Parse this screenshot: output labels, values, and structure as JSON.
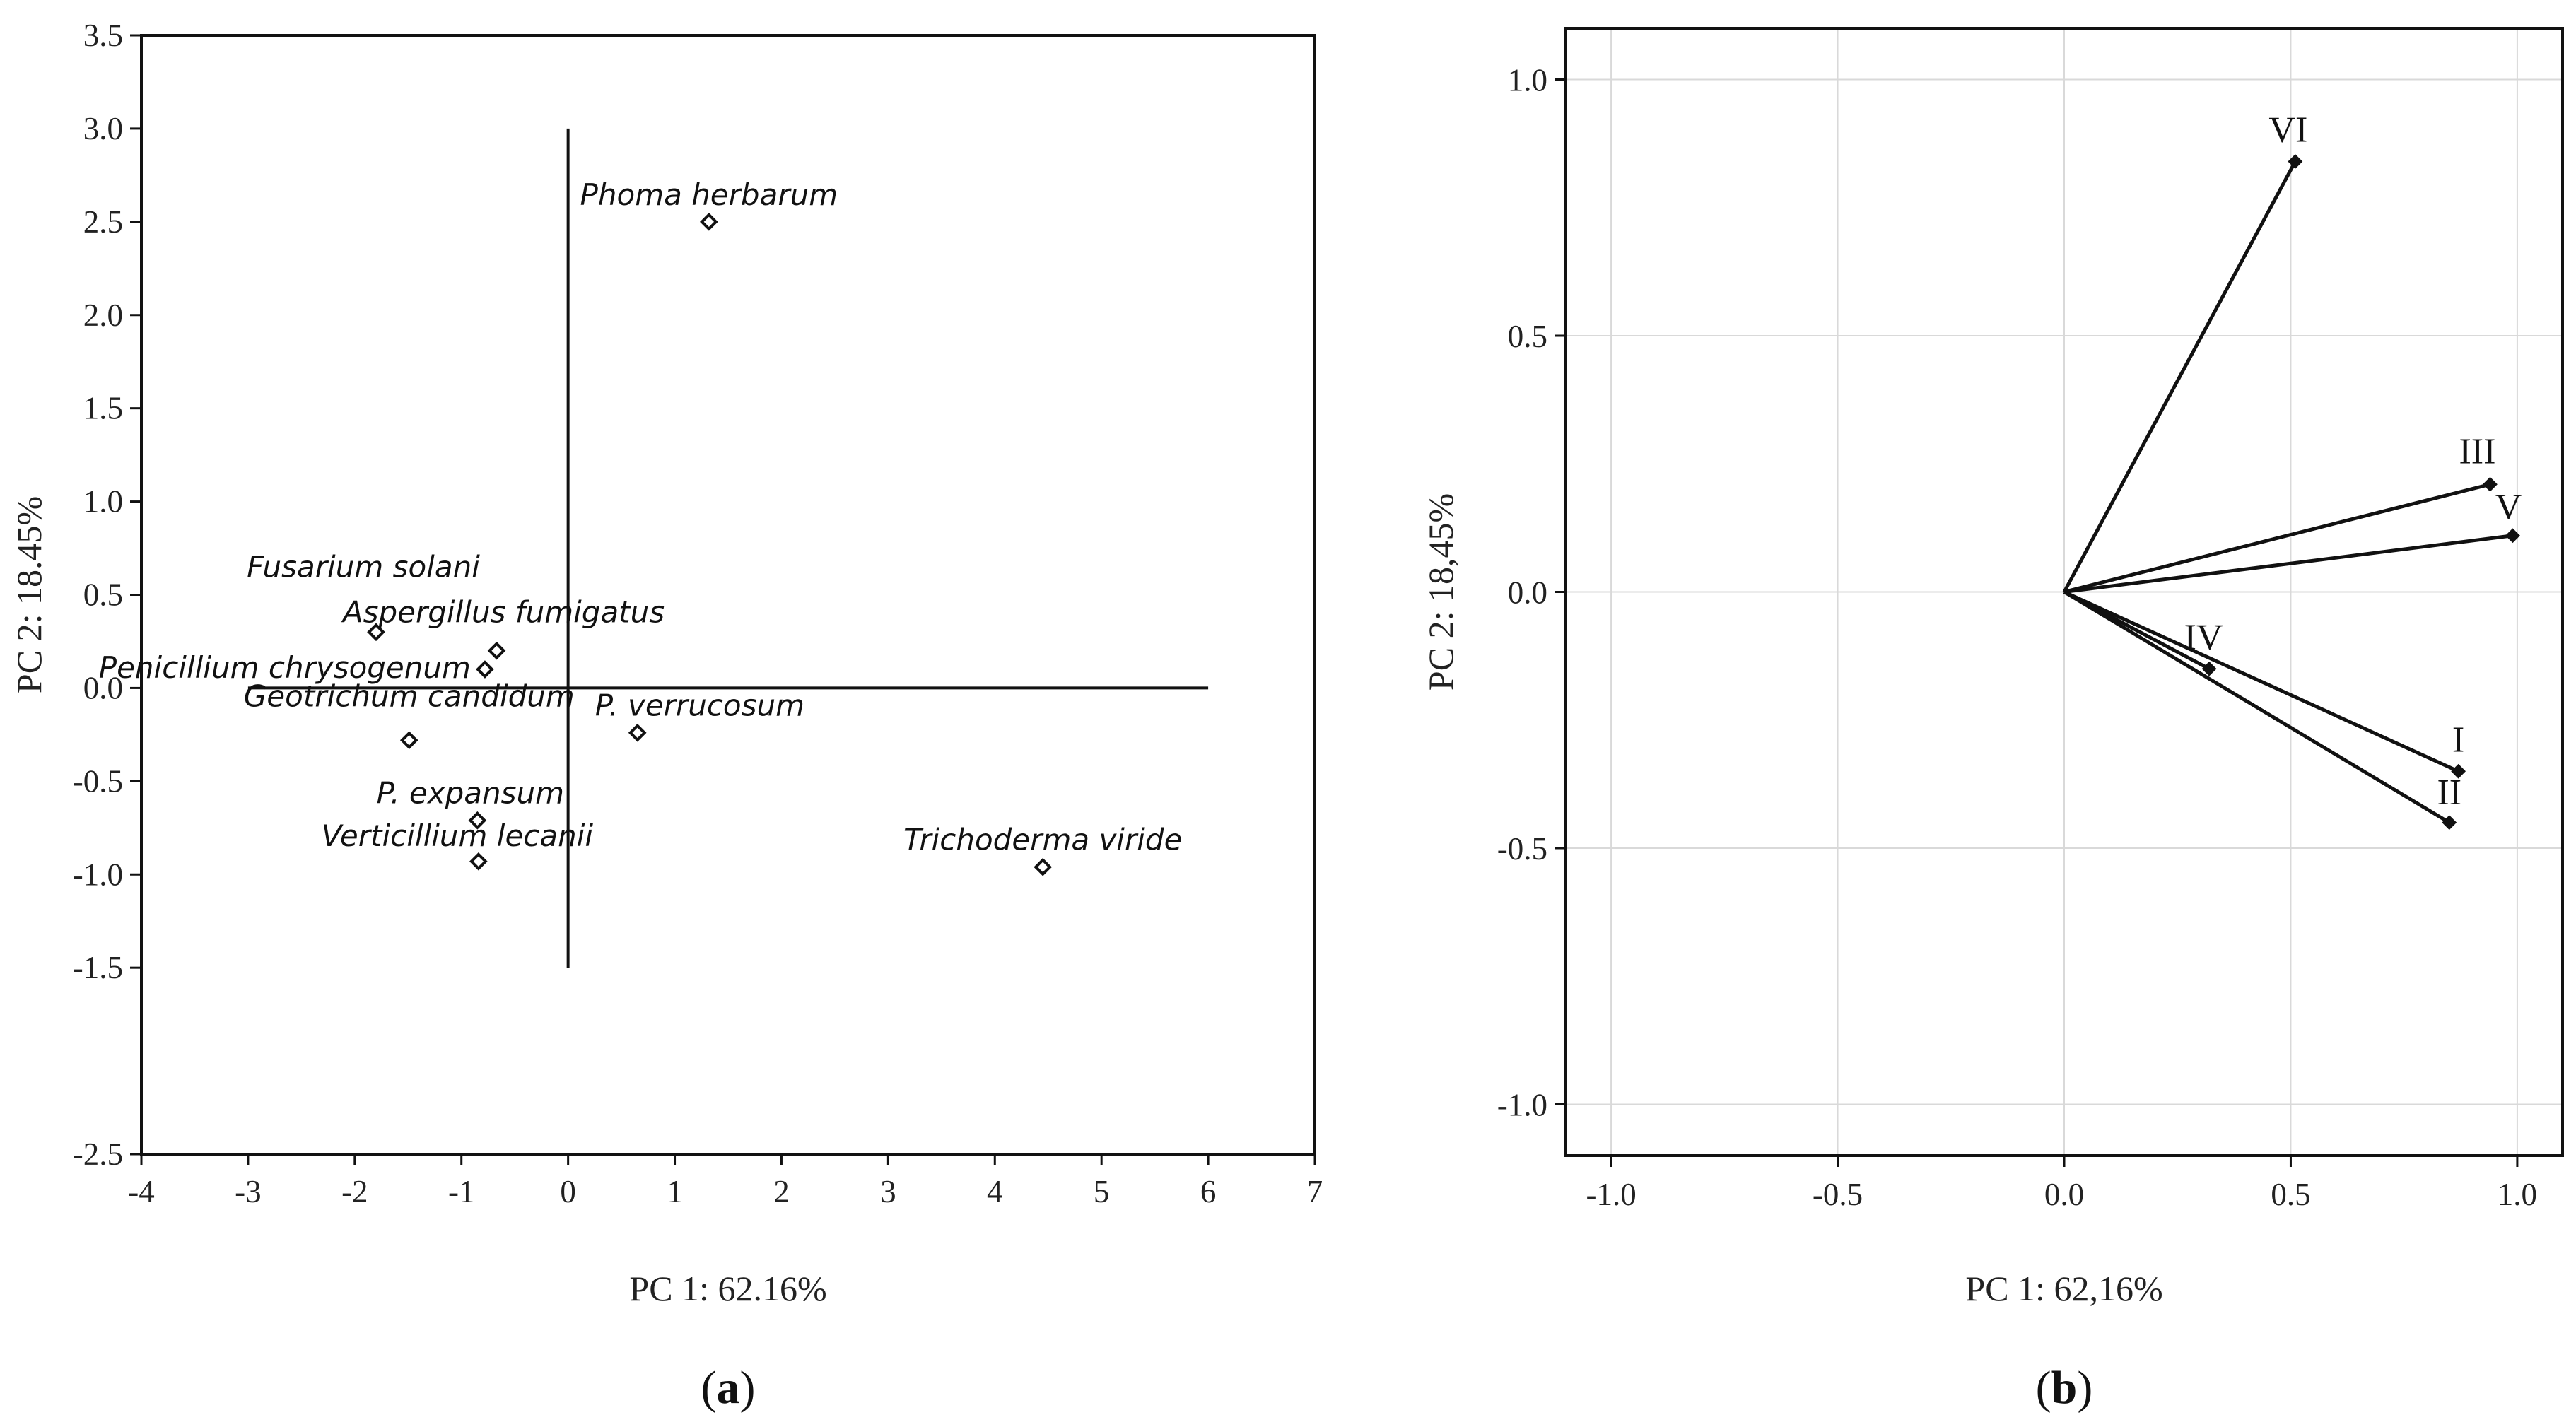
{
  "chart_data": [
    {
      "type": "scatter",
      "panel_label": "a",
      "xlabel": "PC 1: 62.16%",
      "ylabel": "PC 2: 18.45%",
      "xlim": [
        -4,
        7
      ],
      "ylim": [
        -2.5,
        3.5
      ],
      "xticks": [
        "-4",
        "-3",
        "-2",
        "-1",
        "0",
        "1",
        "2",
        "3",
        "4",
        "5",
        "6",
        "7"
      ],
      "yticks": [
        "3.5",
        "3.0",
        "2.5",
        "2.0",
        "1.5",
        "1.0",
        "0.5",
        "0.0",
        "-0.5",
        "-1.0",
        "-1.5",
        "-2.5"
      ],
      "ytick_values": [
        3.5,
        3.0,
        2.5,
        2.0,
        1.5,
        1.0,
        0.5,
        0.0,
        -0.5,
        -1.0,
        -1.5,
        -2.5
      ],
      "reference_lines": {
        "horizontal": {
          "y": 0,
          "x_from": -3,
          "x_to": 6
        },
        "vertical": {
          "x": 0,
          "y_from": -1.5,
          "y_to": 3.0
        }
      },
      "grid": false,
      "points": [
        {
          "label": "Phoma herbarum",
          "x": 1.32,
          "y": 2.5
        },
        {
          "label": "Fusarium solani",
          "x": -1.8,
          "y": 0.3
        },
        {
          "label": "Aspergillus fumigatus",
          "x": -0.67,
          "y": 0.2
        },
        {
          "label": "Penicillium chrysogenum",
          "x": -0.78,
          "y": 0.1
        },
        {
          "label": "Geotrichum candidum",
          "x": -1.49,
          "y": -0.28
        },
        {
          "label": "P. verrucosum",
          "x": 0.65,
          "y": -0.24
        },
        {
          "label": "P. expansum",
          "x": -0.85,
          "y": -0.71
        },
        {
          "label": "Verticillium lecanii",
          "x": -0.84,
          "y": -0.93
        },
        {
          "label": "Trichoderma viride",
          "x": 4.45,
          "y": -0.96
        }
      ]
    },
    {
      "type": "vector",
      "panel_label": "b",
      "xlabel": "PC 1: 62,16%",
      "ylabel": "PC 2: 18,45%",
      "xlim": [
        -1.1,
        1.1
      ],
      "ylim": [
        -1.1,
        1.1
      ],
      "xticks": [
        "-1.0",
        "-0.5",
        "0.0",
        "0.5",
        "1.0"
      ],
      "xtick_values": [
        -1.0,
        -0.5,
        0.0,
        0.5,
        1.0
      ],
      "yticks": [
        "1.0",
        "0.5",
        "0.0",
        "-0.5",
        "-1.0"
      ],
      "ytick_values": [
        1.0,
        0.5,
        0.0,
        -0.5,
        -1.0
      ],
      "grid": true,
      "vectors": [
        {
          "label": "VI",
          "x": 0.51,
          "y": 0.84
        },
        {
          "label": "III",
          "x": 0.94,
          "y": 0.21
        },
        {
          "label": "V",
          "x": 0.99,
          "y": 0.11
        },
        {
          "label": "IV",
          "x": 0.32,
          "y": -0.15
        },
        {
          "label": "I",
          "x": 0.87,
          "y": -0.35
        },
        {
          "label": "II",
          "x": 0.85,
          "y": -0.45
        }
      ]
    }
  ]
}
